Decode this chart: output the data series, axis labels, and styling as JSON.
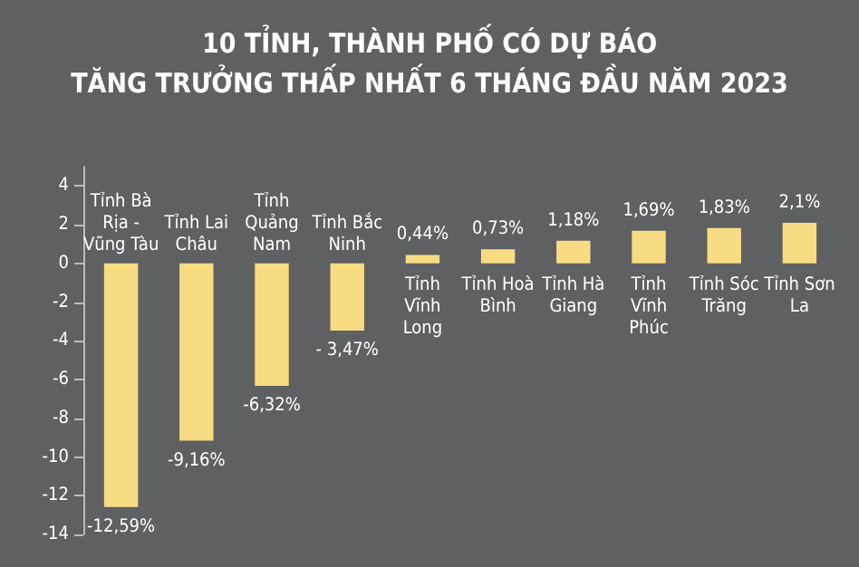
{
  "chart_data": {
    "type": "bar",
    "title": "10 TỈNH, THÀNH PHỐ CÓ DỰ BÁO\nTĂNG TRƯỞNG THẤP NHẤT 6 THÁNG ĐẦU NĂM 2023",
    "categories": [
      "Tỉnh Bà Rịa - Vũng Tàu",
      "Tỉnh Lai Châu",
      "Tỉnh Quảng Nam",
      "Tỉnh Bắc Ninh",
      "Tỉnh Vĩnh Long",
      "Tỉnh Hoà Bình",
      "Tỉnh Hà Giang",
      "Tỉnh Vĩnh Phúc",
      "Tỉnh Sóc Trăng",
      "Tỉnh Sơn La"
    ],
    "values": [
      -12.59,
      -9.16,
      -6.32,
      -3.47,
      0.44,
      0.73,
      1.18,
      1.69,
      1.83,
      2.1
    ],
    "value_labels": [
      "-12,59%",
      "-9,16%",
      "-6,32%",
      "- 3,47%",
      "0,44%",
      "0,73%",
      "1,18%",
      "1,69%",
      "1,83%",
      "2,1%"
    ],
    "color": "#f7dc83",
    "ylim": [
      -14,
      5
    ],
    "yticks": [
      -14,
      -12,
      -10,
      -8,
      -6,
      -4,
      -2,
      0,
      2,
      4
    ],
    "grid": false
  }
}
